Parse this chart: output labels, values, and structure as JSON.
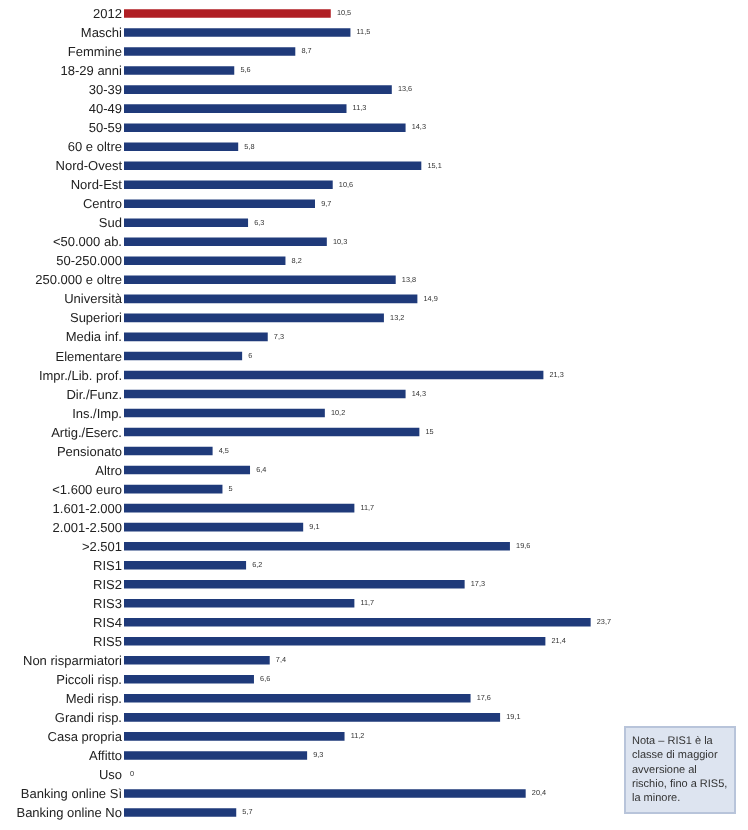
{
  "chart_data": {
    "type": "bar",
    "orientation": "horizontal",
    "tick_labels": "y",
    "legend": false,
    "value_labels": [
      "10,5",
      "11,5",
      "8,7",
      "5,6",
      "13,6",
      "11,3",
      "14,3",
      "5,8",
      "15,1",
      "10,6",
      "9,7",
      "6,3",
      "10,3",
      "8,2",
      "13,8",
      "14,9",
      "13,2",
      "7,3",
      "6",
      "21,3",
      "14,3",
      "10,2",
      "15",
      "4,5",
      "6,4",
      "5",
      "11,7",
      "9,1",
      "19,6",
      "6,2",
      "17,3",
      "11,7",
      "23,7",
      "21,4",
      "7,4",
      "6,6",
      "17,6",
      "19,1",
      "11,2",
      "9,3",
      "0",
      "20,4",
      "5,7"
    ],
    "categories": [
      "2012",
      "Maschi",
      "Femmine",
      "18-29 anni",
      "30-39",
      "40-49",
      "50-59",
      "60 e oltre",
      "Nord-Ovest",
      "Nord-Est",
      "Centro",
      "Sud",
      "<50.000 ab.",
      "50-250.000",
      "250.000 e oltre",
      "Università",
      "Superiori",
      "Media inf.",
      "Elementare",
      "Impr./Lib. prof.",
      "Dir./Funz.",
      "Ins./Imp.",
      "Artig./Eserc.",
      "Pensionato",
      "Altro",
      "<1.600 euro",
      "1.601-2.000",
      "2.001-2.500",
      ">2.501",
      "RIS1",
      "RIS2",
      "RIS3",
      "RIS4",
      "RIS5",
      "Non risparmiatori",
      "Piccoli risp.",
      "Medi risp.",
      "Grandi risp.",
      "Casa propria",
      "Affitto",
      "Uso",
      "Banking online Sì",
      "Banking online No"
    ],
    "values": [
      10.5,
      11.5,
      8.7,
      5.6,
      13.6,
      11.3,
      14.3,
      5.8,
      15.1,
      10.6,
      9.7,
      6.3,
      10.3,
      8.2,
      13.8,
      14.9,
      13.2,
      7.3,
      6,
      21.3,
      14.3,
      10.2,
      15,
      4.5,
      6.4,
      5,
      11.7,
      9.1,
      19.6,
      6.2,
      17.3,
      11.7,
      23.7,
      21.4,
      7.4,
      6.6,
      17.6,
      19.1,
      11.2,
      9.3,
      0,
      20.4,
      5.7
    ],
    "colors": [
      "#b01e23",
      "#1f3a7a",
      "#1f3a7a",
      "#1f3a7a",
      "#1f3a7a",
      "#1f3a7a",
      "#1f3a7a",
      "#1f3a7a",
      "#1f3a7a",
      "#1f3a7a",
      "#1f3a7a",
      "#1f3a7a",
      "#1f3a7a",
      "#1f3a7a",
      "#1f3a7a",
      "#1f3a7a",
      "#1f3a7a",
      "#1f3a7a",
      "#1f3a7a",
      "#1f3a7a",
      "#1f3a7a",
      "#1f3a7a",
      "#1f3a7a",
      "#1f3a7a",
      "#1f3a7a",
      "#1f3a7a",
      "#1f3a7a",
      "#1f3a7a",
      "#1f3a7a",
      "#1f3a7a",
      "#1f3a7a",
      "#1f3a7a",
      "#1f3a7a",
      "#1f3a7a",
      "#1f3a7a",
      "#1f3a7a",
      "#1f3a7a",
      "#1f3a7a",
      "#1f3a7a",
      "#1f3a7a",
      "#1f3a7a",
      "#1f3a7a",
      "#1f3a7a"
    ],
    "annotations": [
      "Nota – RIS1 è la classe di maggior avversione al rischio, fino a RIS5, la minore."
    ]
  }
}
